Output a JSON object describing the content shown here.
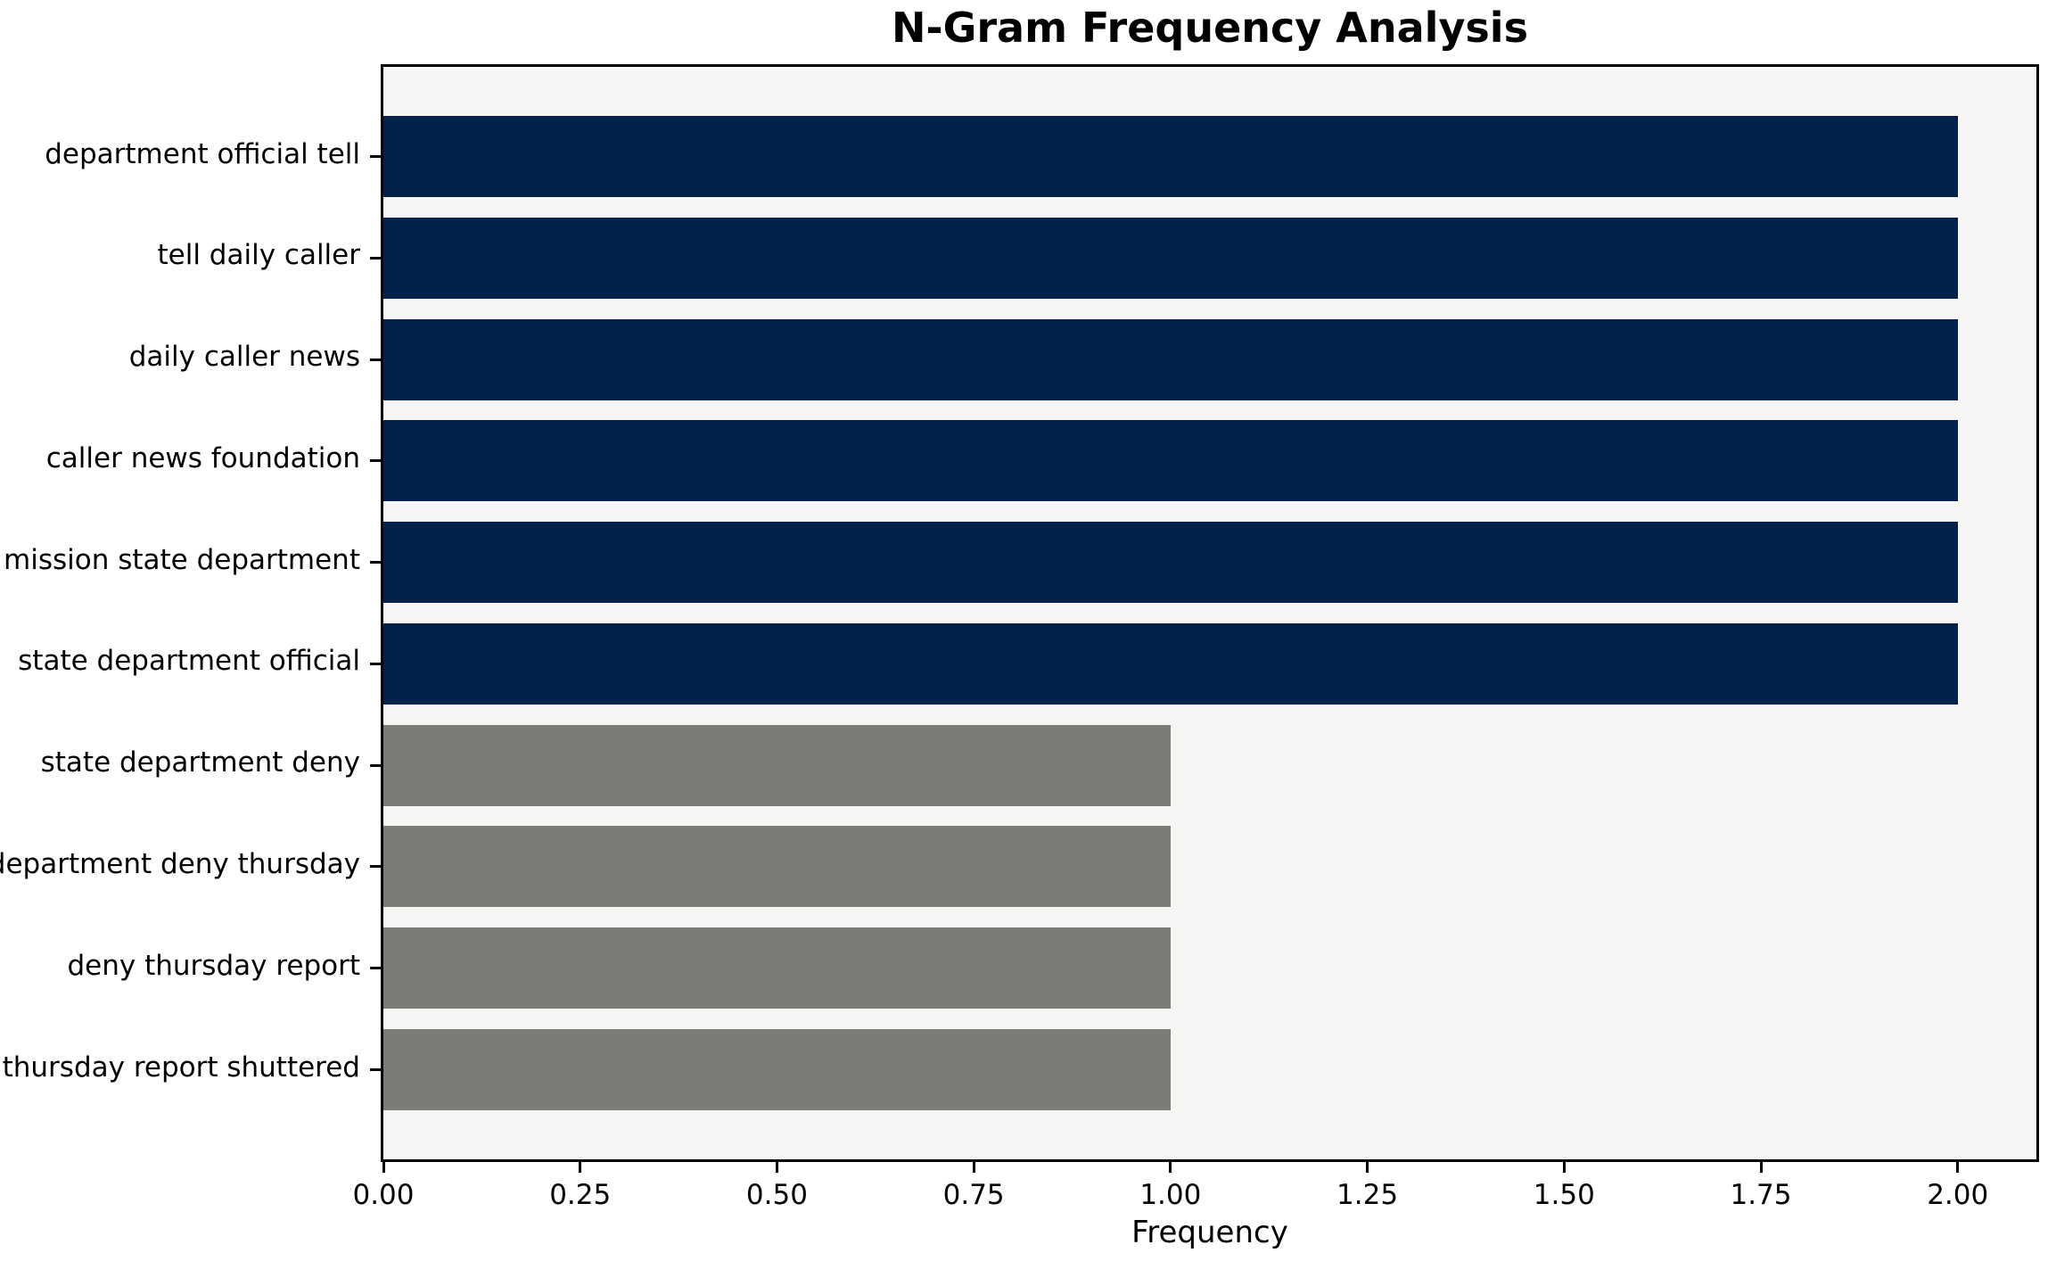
{
  "chart_data": {
    "type": "bar",
    "orientation": "horizontal",
    "title": "N-Gram Frequency Analysis",
    "xlabel": "Frequency",
    "ylabel": "",
    "categories": [
      "department official tell",
      "tell daily caller",
      "daily caller news",
      "caller news foundation",
      "mission state department",
      "state department official",
      "state department deny",
      "department deny thursday",
      "deny thursday report",
      "thursday report shuttered"
    ],
    "values": [
      2,
      2,
      2,
      2,
      2,
      2,
      1,
      1,
      1,
      1
    ],
    "bar_colors": [
      "#02224c",
      "#02224c",
      "#02224c",
      "#02224c",
      "#02224c",
      "#02224c",
      "#7b7b78",
      "#7b7b78",
      "#7b7b78",
      "#7b7b78"
    ],
    "xlim": [
      0,
      2.1
    ],
    "xtick_labels": [
      "0.00",
      "0.25",
      "0.50",
      "0.75",
      "1.00",
      "1.25",
      "1.50",
      "1.75",
      "2.00"
    ],
    "xtick_values": [
      0,
      0.25,
      0.5,
      0.75,
      1.0,
      1.25,
      1.5,
      1.75,
      2.0
    ],
    "grid": false,
    "legend": "none",
    "colors": {
      "high_frequency_bar": "#02224c",
      "low_frequency_bar": "#7b7b78",
      "plot_background": "#f7f6f5",
      "figure_background": "#ffffff",
      "spine": "#000000",
      "text": "#000000"
    }
  }
}
